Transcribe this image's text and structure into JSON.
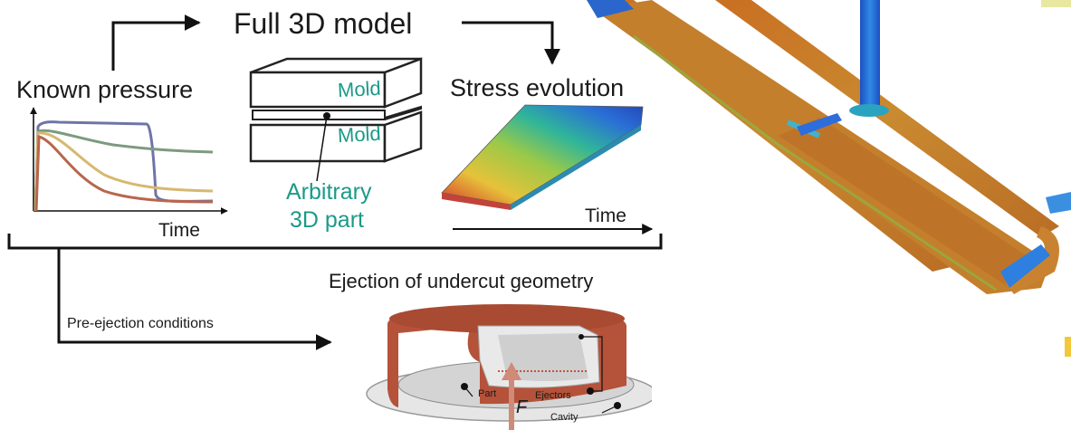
{
  "top": {
    "title": "Full 3D model"
  },
  "known_pressure": {
    "title": "Known pressure",
    "axis_label": "Time",
    "curve_colors": [
      "#6f74a8",
      "#7d9a80",
      "#d6b870",
      "#b8664d"
    ]
  },
  "mold_diagram": {
    "mold_top": "Mold",
    "mold_bottom": "Mold",
    "part_label_line1": "Arbitrary",
    "part_label_line2": "3D part"
  },
  "stress_evolution": {
    "title": "Stress evolution",
    "axis_label": "Time"
  },
  "ejection": {
    "title": "Ejection of undercut geometry",
    "arrow_label": "Pre-ejection conditions",
    "part_label": "Part",
    "ejectors_label": "Ejectors",
    "cavity_label": "Cavity",
    "force_label": "F"
  },
  "colors": {
    "accent": "#1b9a88",
    "part_brown": "#b5523a",
    "stress_orange": "#c9772a",
    "stress_blue": "#2a6fd6"
  }
}
